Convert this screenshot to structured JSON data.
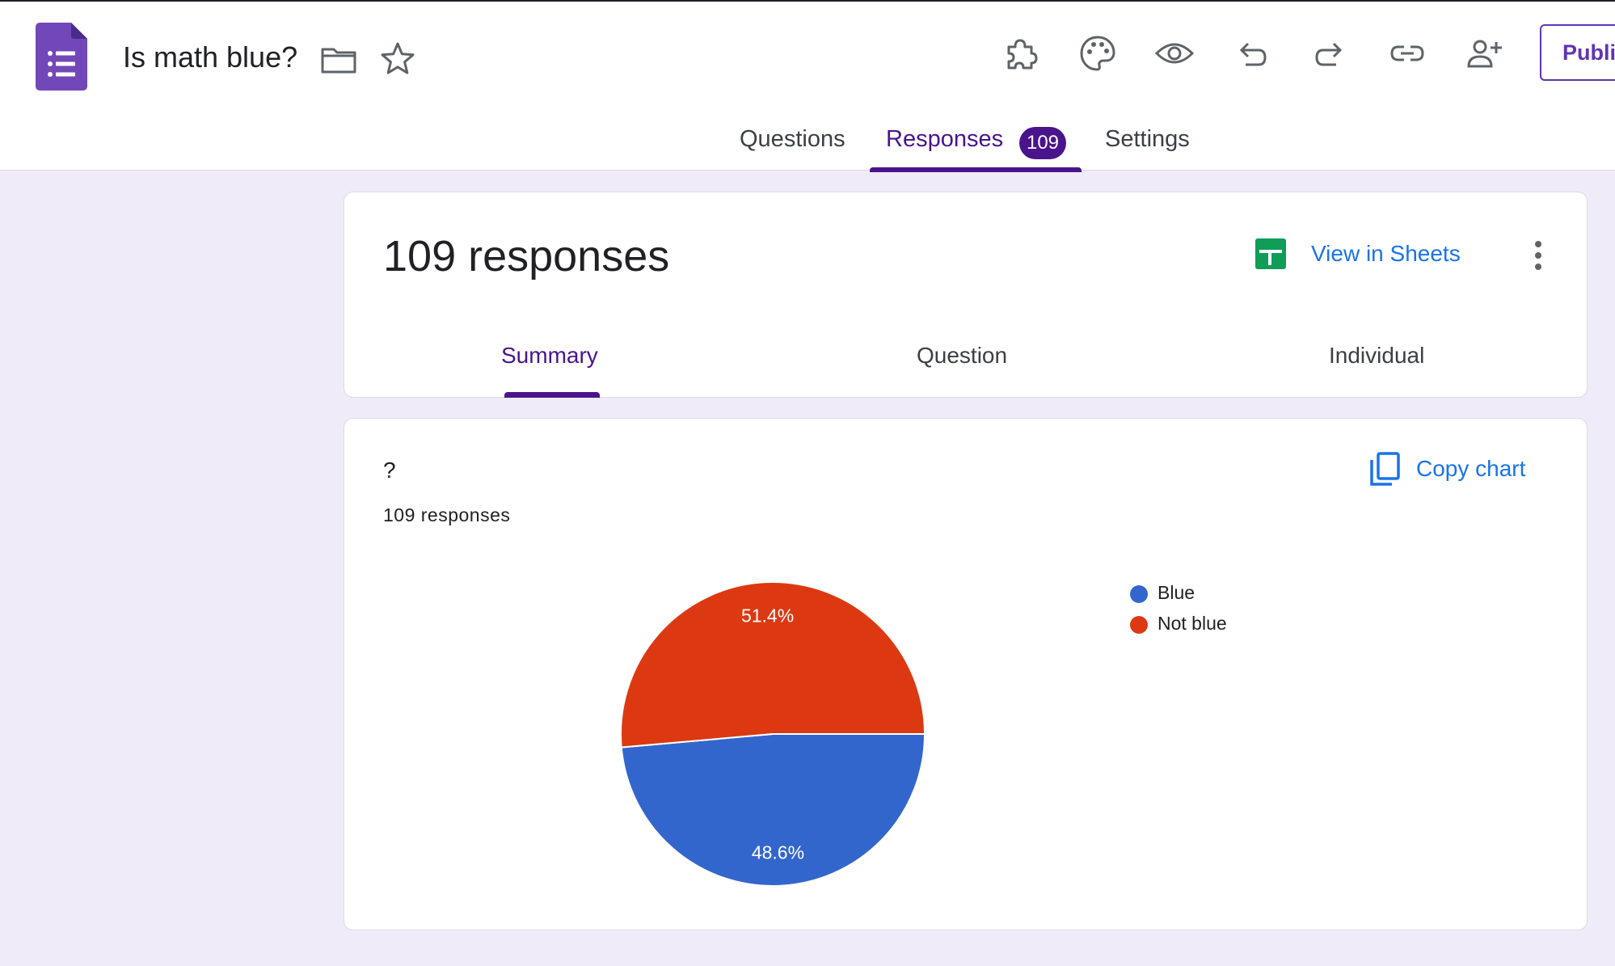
{
  "header": {
    "doc_title": "Is math blue?",
    "publish_label": "Publi"
  },
  "tabs": [
    {
      "label": "Questions"
    },
    {
      "label": "Responses",
      "badge": "109"
    },
    {
      "label": "Settings"
    }
  ],
  "summary_card": {
    "title": "109 responses",
    "view_in_sheets": "View in Sheets",
    "subtabs": [
      "Summary",
      "Question",
      "Individual"
    ]
  },
  "question_card": {
    "title": "?",
    "response_count": "109 responses",
    "copy_chart_label": "Copy chart"
  },
  "chart_data": {
    "type": "pie",
    "slices": [
      {
        "label": "Blue",
        "value": 48.6,
        "display": "48.6%",
        "color": "#3366cc"
      },
      {
        "label": "Not blue",
        "value": 51.4,
        "display": "51.4%",
        "color": "#dc3912"
      }
    ],
    "legend_position": "right"
  },
  "colors": {
    "accent": "#4a148c",
    "link": "#1a73e8",
    "background": "#f0ebf8"
  }
}
